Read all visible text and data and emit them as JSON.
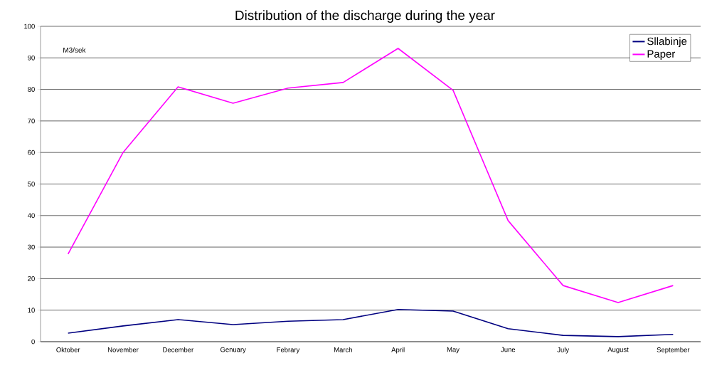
{
  "chart_data": {
    "type": "line",
    "title": "Distribution of the discharge during the year",
    "ylabel": "M3/sek",
    "categories": [
      "Oktober",
      "November",
      "December",
      "Genuary",
      "Febrary",
      "March",
      "April",
      "May",
      "June",
      "July",
      "August",
      "September"
    ],
    "series": [
      {
        "name": "Sllabinje",
        "color": "#000080",
        "values": [
          2.7,
          5.0,
          7.0,
          5.4,
          6.5,
          7.0,
          10.2,
          9.7,
          4.1,
          2.0,
          1.6,
          2.3
        ]
      },
      {
        "name": "Paper",
        "color": "#ff00ff",
        "values": [
          27.8,
          60,
          80.8,
          75.6,
          80.4,
          82.2,
          93,
          79.7,
          38.4,
          17.8,
          12.4,
          17.8
        ]
      }
    ],
    "ylim": [
      0,
      100
    ],
    "yticks": [
      0,
      10,
      20,
      30,
      40,
      50,
      60,
      70,
      80,
      90,
      100
    ],
    "grid": "y",
    "legend": "top right"
  }
}
